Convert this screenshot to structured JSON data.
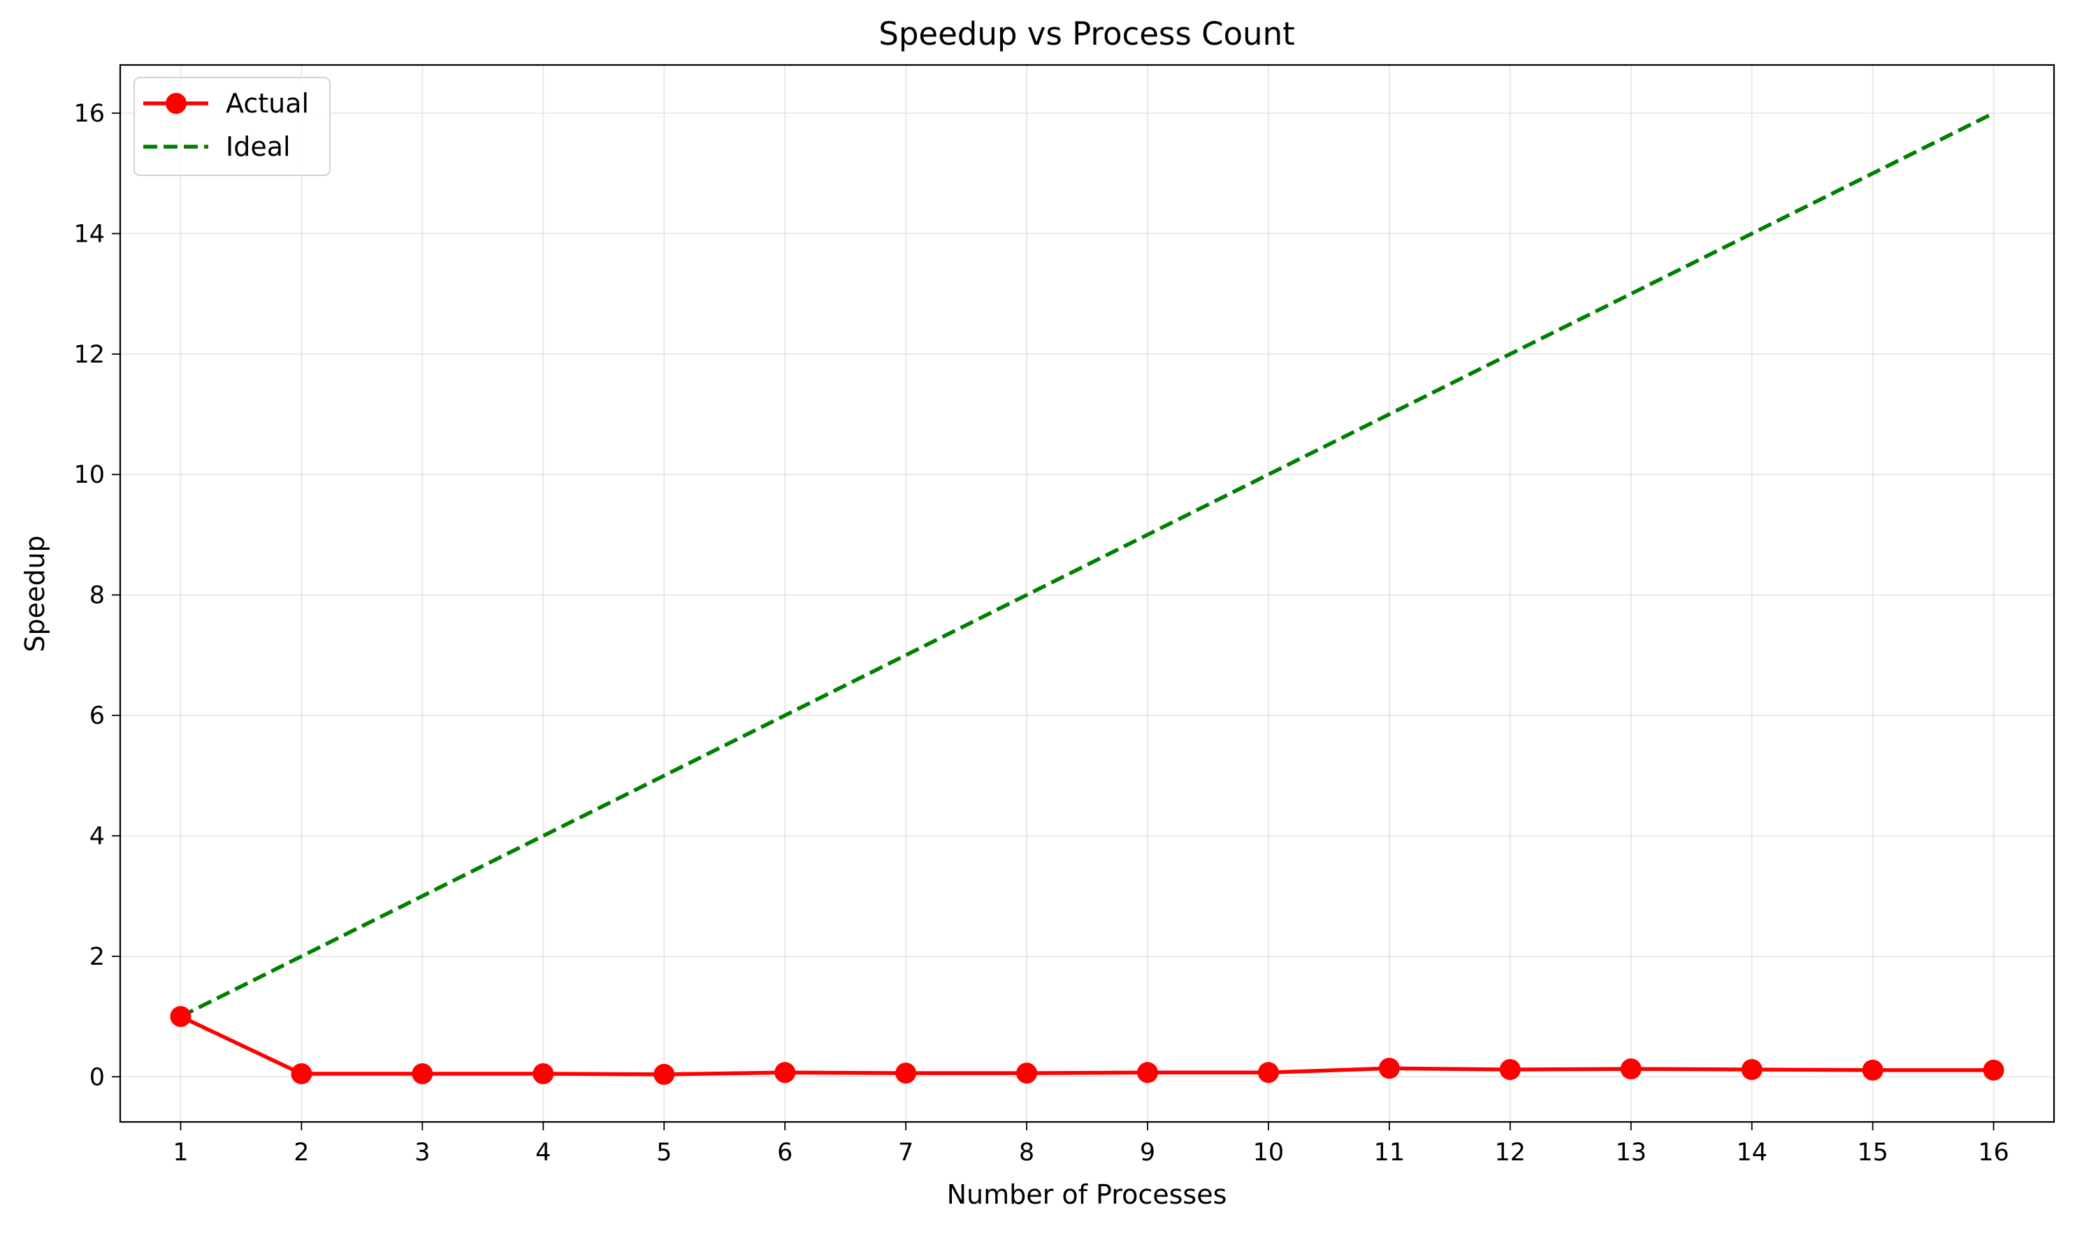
{
  "chart_data": {
    "type": "line",
    "title": "Speedup vs Process Count",
    "xlabel": "Number of Processes",
    "ylabel": "Speedup",
    "x": [
      1,
      2,
      3,
      4,
      5,
      6,
      7,
      8,
      9,
      10,
      11,
      12,
      13,
      14,
      15,
      16
    ],
    "xlim": [
      0.5,
      16.5
    ],
    "ylim": [
      -0.75,
      16.8
    ],
    "yticks": [
      0,
      2,
      4,
      6,
      8,
      10,
      12,
      14,
      16
    ],
    "grid": true,
    "legend_position": "top-left",
    "series": [
      {
        "name": "Actual",
        "color": "#ff0000",
        "style": "solid",
        "marker": "circle",
        "values": [
          1.0,
          0.05,
          0.05,
          0.05,
          0.04,
          0.07,
          0.06,
          0.06,
          0.07,
          0.07,
          0.14,
          0.12,
          0.13,
          0.12,
          0.11,
          0.11
        ]
      },
      {
        "name": "Ideal",
        "color": "#008000",
        "style": "dashed",
        "marker": "none",
        "values": [
          1,
          2,
          3,
          4,
          5,
          6,
          7,
          8,
          9,
          10,
          11,
          12,
          13,
          14,
          15,
          16
        ]
      }
    ]
  }
}
